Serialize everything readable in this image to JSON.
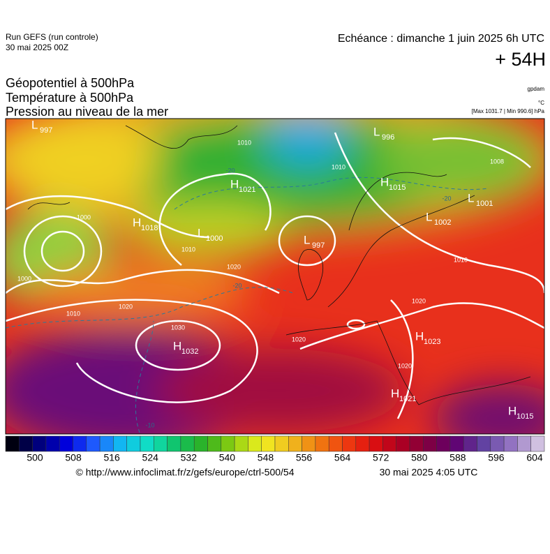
{
  "header": {
    "run": "Run GEFS (run controle)",
    "run_date": "30 mai 2025 00Z",
    "echeance": "Echéance : dimanche 1 juin 2025 6h UTC",
    "lead": "+ 54H"
  },
  "layers": [
    "Géopotentiel à 500hPa",
    "Température à 500hPa",
    "Pression au niveau de la mer"
  ],
  "units": [
    "gpdam",
    "°C",
    "[Max 1031.7 | Min 990.6] hPa"
  ],
  "pressure_centers": [
    {
      "type": "H",
      "value": "1032"
    },
    {
      "type": "H",
      "value": "1021"
    },
    {
      "type": "H",
      "value": "1018"
    },
    {
      "type": "H",
      "value": "1015"
    },
    {
      "type": "H",
      "value": "1023"
    },
    {
      "type": "H",
      "value": "1021"
    },
    {
      "type": "H",
      "value": "1015"
    },
    {
      "type": "L",
      "value": "997"
    },
    {
      "type": "L",
      "value": "1000"
    },
    {
      "type": "L",
      "value": "1001"
    },
    {
      "type": "L",
      "value": "1002"
    },
    {
      "type": "L",
      "value": "996"
    },
    {
      "type": "L",
      "value": "997"
    }
  ],
  "isobar_labels": [
    "1030",
    "1020",
    "1020",
    "1020",
    "1020",
    "1020",
    "1010",
    "1010",
    "1010",
    "1010",
    "1010",
    "1000",
    "1000",
    "1008"
  ],
  "temperature_labels": [
    "-20",
    "-20",
    "-10",
    "-20"
  ],
  "colorbar": {
    "ticks": [
      500,
      508,
      516,
      524,
      532,
      540,
      548,
      556,
      564,
      572,
      580,
      588,
      596,
      604
    ]
  },
  "footer": {
    "url": "© http://www.infoclimat.fr/z/gefs/europe/ctrl-500/54",
    "timestamp": "30 mai 2025  4:05 UTC"
  }
}
